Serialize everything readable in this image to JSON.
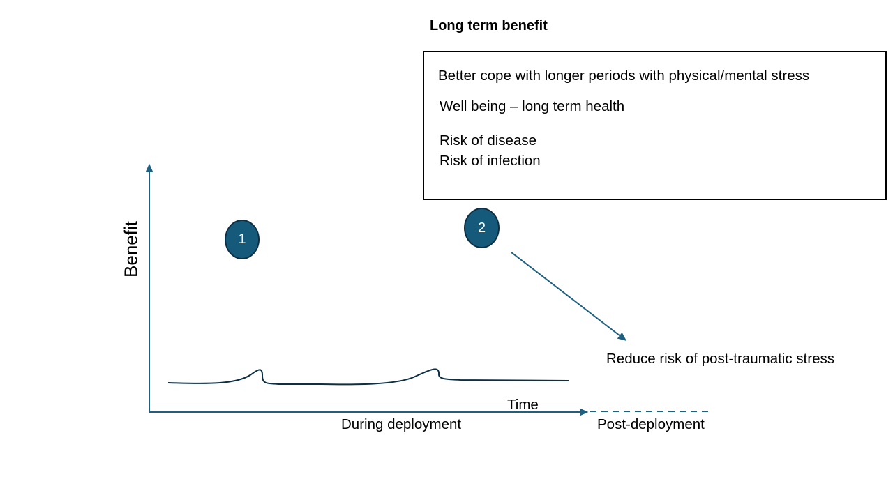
{
  "header": {
    "title": "Long term benefit"
  },
  "benefit_box": {
    "lines": [
      "Better cope with longer periods with physical/mental stress",
      "Well being – long term health",
      "Risk of disease",
      "Risk of infection"
    ]
  },
  "chart": {
    "y_axis_label": "Benefit",
    "x_axis_label": "Time",
    "phase_during": "During deployment",
    "phase_post": "Post-deployment"
  },
  "markers": [
    {
      "label": "1"
    },
    {
      "label": "2"
    }
  ],
  "annotation": {
    "text": "Reduce risk of post-traumatic stress"
  },
  "colors": {
    "axis": "#1f5f80",
    "marker_fill": "#155a7a",
    "marker_border": "#0d2f44",
    "curve": "#0d2f44",
    "text": "#000000"
  }
}
